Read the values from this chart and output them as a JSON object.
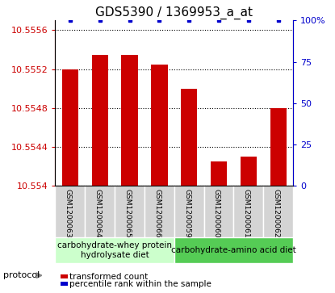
{
  "title": "GDS5390 / 1369953_a_at",
  "samples": [
    "GSM1200063",
    "GSM1200064",
    "GSM1200065",
    "GSM1200066",
    "GSM1200059",
    "GSM1200060",
    "GSM1200061",
    "GSM1200062"
  ],
  "bar_values": [
    10.5552,
    10.55535,
    10.55535,
    10.55525,
    10.555,
    10.55425,
    10.5543,
    10.5548
  ],
  "percentile_values": [
    100,
    100,
    100,
    100,
    100,
    100,
    100,
    100
  ],
  "ylim_left": [
    10.554,
    10.5557
  ],
  "ylim_right": [
    0,
    100
  ],
  "yticks_left": [
    10.554,
    10.5544,
    10.5548,
    10.5552,
    10.5556
  ],
  "yticks_right": [
    0,
    25,
    50,
    75,
    100
  ],
  "bar_color": "#cc0000",
  "dot_color": "#0000cc",
  "groups": [
    {
      "label": "carbohydrate-whey protein\nhydrolysate diet",
      "start": 0,
      "end": 4,
      "color": "#ccffcc"
    },
    {
      "label": "carbohydrate-amino acid diet",
      "start": 4,
      "end": 8,
      "color": "#55cc55"
    }
  ],
  "legend_items": [
    {
      "color": "#cc0000",
      "label": "transformed count"
    },
    {
      "color": "#0000cc",
      "label": "percentile rank within the sample"
    }
  ],
  "protocol_label": "protocol",
  "title_fontsize": 11,
  "tick_fontsize": 8,
  "label_fontsize": 7.5,
  "group_fontsize": 7.5,
  "sample_fontsize": 6.5
}
